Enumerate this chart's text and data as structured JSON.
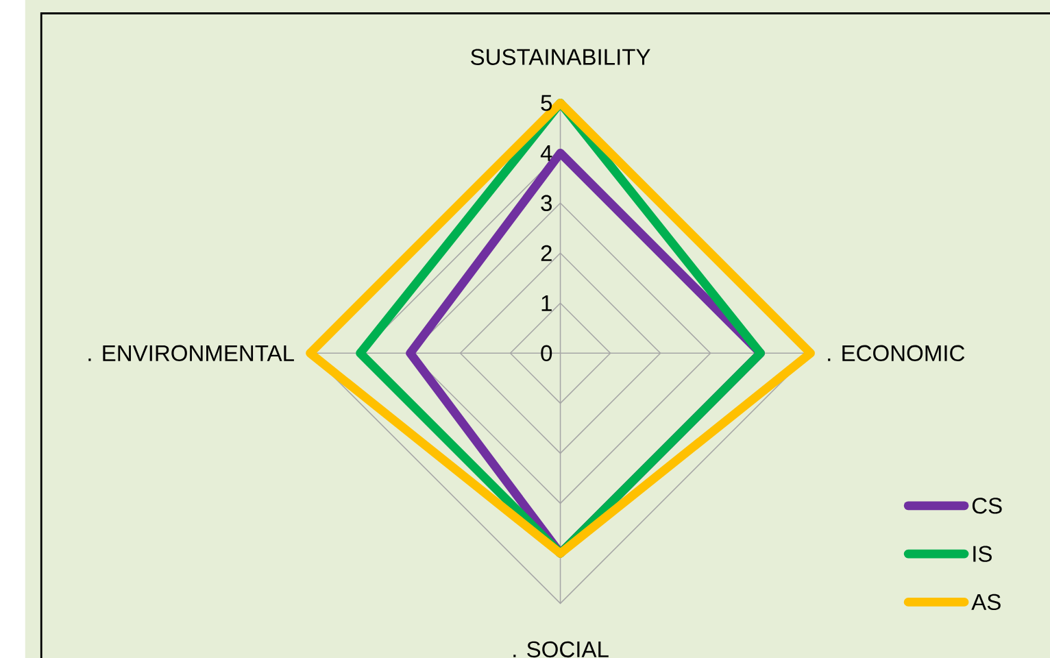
{
  "chart_data": {
    "type": "radar",
    "categories": [
      "SUSTAINABILITY",
      ". ECONOMIC",
      ". SOCIAL",
      ". ENVIRONMENTAL"
    ],
    "ylim": [
      0,
      5
    ],
    "yticks": [
      0,
      1,
      2,
      3,
      4,
      5
    ],
    "grid": true,
    "legend": "bottom right",
    "marker": "none",
    "line_style": "solid",
    "series": [
      {
        "name": "CS",
        "color": "#7030a0",
        "values": [
          4,
          4,
          4,
          3
        ]
      },
      {
        "name": "IS",
        "color": "#00b050",
        "values": [
          5,
          4,
          4,
          4
        ]
      },
      {
        "name": "AS",
        "color": "#ffc000",
        "values": [
          5,
          5,
          4,
          5
        ]
      }
    ]
  }
}
